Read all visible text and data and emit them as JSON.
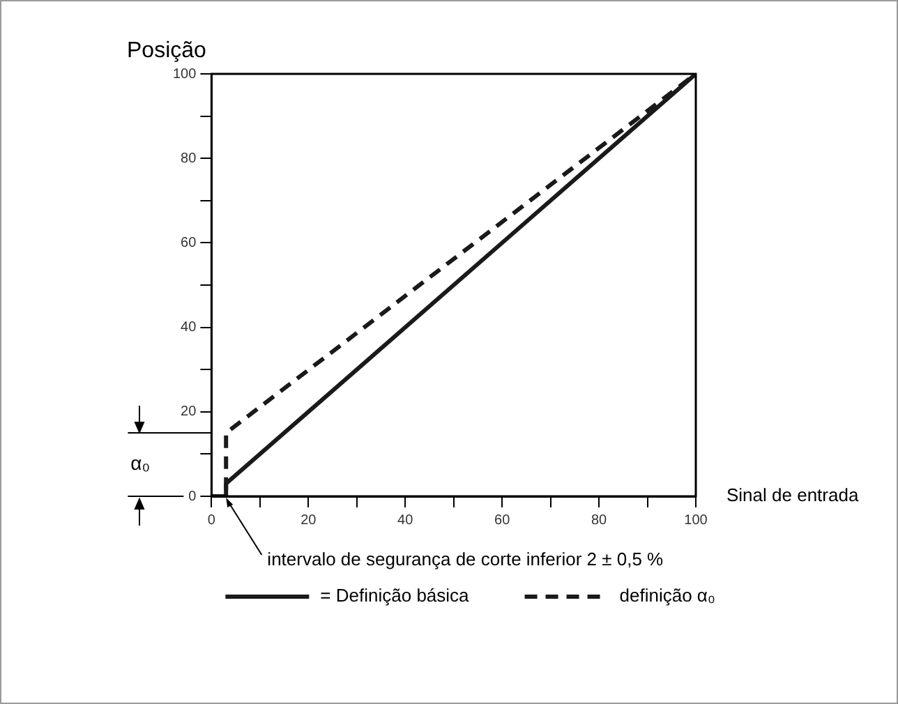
{
  "chart_data": {
    "type": "line",
    "xlabel": "Sinal de entrada",
    "ylabel": "Posição",
    "x": [
      0,
      3,
      3,
      100
    ],
    "series": [
      {
        "name": "= Definição básica",
        "color": "#1a1a1a",
        "line_style": "solid",
        "values": [
          0,
          0,
          3,
          100
        ]
      },
      {
        "name": "definição α₀",
        "color": "#1a1a1a",
        "line_style": "dashed",
        "values": [
          0,
          0,
          15,
          100
        ]
      }
    ],
    "xlim": [
      0,
      100
    ],
    "ylim": [
      0,
      100
    ],
    "xticks": [
      0,
      {
        "value": 10,
        "label": null
      },
      20,
      {
        "value": 30,
        "label": null
      },
      40,
      {
        "value": 50,
        "label": null
      },
      60,
      {
        "value": 70,
        "label": null
      },
      80,
      {
        "value": 90,
        "label": null
      },
      100
    ],
    "yticks": [
      0,
      {
        "value": 10,
        "label": null
      },
      20,
      {
        "value": 30,
        "label": null
      },
      40,
      {
        "value": 50,
        "label": null
      },
      60,
      {
        "value": 70,
        "label": null
      },
      80,
      {
        "value": 90,
        "label": null
      },
      100
    ],
    "ref_lines": [
      {
        "axis": "y",
        "value": 15,
        "label": "α₀"
      }
    ],
    "annotations": [
      {
        "text": "intervalo de segurança de corte inferior 2 ± 0,5 %",
        "x": 3,
        "y": 0
      }
    ],
    "grid": false,
    "legend": "bottom",
    "marker": "none"
  }
}
